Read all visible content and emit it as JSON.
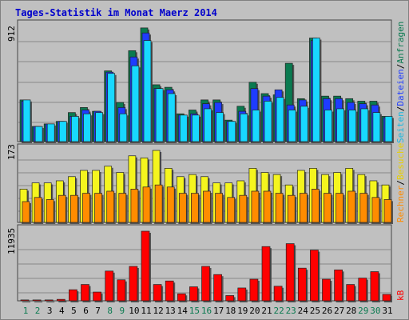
{
  "title": "Tages-Statistik im Monat Maerz 2014",
  "colors": {
    "background": "#c0c0c0",
    "panel": "#c0c0c0",
    "title": "#0000cc",
    "anfragen": "#0a7a50",
    "dateien": "#1e3cff",
    "seiten": "#18d8ff",
    "besuche": "#f5f51e",
    "rechner": "#ff8c00",
    "kb": "#ff0000",
    "weekend_label": "#0a7a50",
    "weekday_label": "#000000"
  },
  "chart_data": [
    {
      "type": "bar",
      "panel": "requests",
      "y_max_label": "912",
      "ylim": [
        0,
        912
      ],
      "categories": [
        "1",
        "2",
        "3",
        "4",
        "5",
        "6",
        "7",
        "8",
        "9",
        "10",
        "11",
        "12",
        "13",
        "14",
        "15",
        "16",
        "17",
        "18",
        "19",
        "20",
        "21",
        "22",
        "23",
        "24",
        "25",
        "26",
        "27",
        "28",
        "29",
        "30",
        "31"
      ],
      "weekend_days": [
        "1",
        "2",
        "8",
        "9",
        "15",
        "16",
        "22",
        "23",
        "29",
        "30"
      ],
      "legend": {
        "anfragen": "Anfragen",
        "dateien": "Dateien",
        "seiten": "Seiten",
        "sep": "/"
      },
      "series": [
        {
          "name": "Anfragen",
          "values": [
            330,
            120,
            140,
            160,
            230,
            270,
            240,
            560,
            310,
            720,
            900,
            450,
            430,
            220,
            250,
            330,
            330,
            170,
            280,
            470,
            380,
            370,
            620,
            340,
            820,
            360,
            360,
            340,
            320,
            320,
            200
          ]
        },
        {
          "name": "Dateien",
          "values": [
            320,
            120,
            140,
            160,
            200,
            250,
            240,
            550,
            270,
            670,
            860,
            420,
            410,
            210,
            220,
            300,
            310,
            160,
            240,
            420,
            360,
            410,
            290,
            330,
            800,
            340,
            340,
            310,
            300,
            290,
            190
          ]
        },
        {
          "name": "Seiten",
          "values": [
            330,
            120,
            140,
            160,
            200,
            220,
            230,
            540,
            220,
            600,
            800,
            420,
            380,
            210,
            210,
            260,
            230,
            160,
            220,
            250,
            320,
            350,
            250,
            280,
            820,
            250,
            260,
            250,
            260,
            230,
            200
          ]
        }
      ]
    },
    {
      "type": "bar",
      "panel": "visits",
      "y_max_label": "173",
      "ylim": [
        0,
        173
      ],
      "categories": [
        "1",
        "2",
        "3",
        "4",
        "5",
        "6",
        "7",
        "8",
        "9",
        "10",
        "11",
        "12",
        "13",
        "14",
        "15",
        "16",
        "17",
        "18",
        "19",
        "20",
        "21",
        "22",
        "23",
        "24",
        "25",
        "26",
        "27",
        "28",
        "29",
        "30",
        "31"
      ],
      "legend": {
        "besuche": "Besuche",
        "rechner": "Rechner",
        "sep": "/"
      },
      "series": [
        {
          "name": "Besuche",
          "values": [
            80,
            95,
            95,
            100,
            110,
            125,
            125,
            135,
            120,
            160,
            155,
            173,
            130,
            110,
            115,
            110,
            95,
            95,
            100,
            130,
            120,
            115,
            90,
            125,
            130,
            115,
            120,
            130,
            115,
            100,
            90
          ]
        },
        {
          "name": "Rechner",
          "values": [
            50,
            60,
            55,
            65,
            65,
            70,
            70,
            75,
            70,
            80,
            85,
            90,
            85,
            70,
            70,
            75,
            70,
            60,
            65,
            75,
            75,
            70,
            65,
            70,
            80,
            70,
            70,
            75,
            70,
            60,
            55
          ]
        }
      ]
    },
    {
      "type": "bar",
      "panel": "traffic",
      "y_max_label": "11935",
      "ylim": [
        0,
        11935
      ],
      "categories": [
        "1",
        "2",
        "3",
        "4",
        "5",
        "6",
        "7",
        "8",
        "9",
        "10",
        "11",
        "12",
        "13",
        "14",
        "15",
        "16",
        "17",
        "18",
        "19",
        "20",
        "21",
        "22",
        "23",
        "24",
        "25",
        "26",
        "27",
        "28",
        "29",
        "30",
        "31"
      ],
      "legend": {
        "kb": "kB"
      },
      "series": [
        {
          "name": "kB",
          "values": [
            150,
            150,
            150,
            250,
            1900,
            2800,
            1500,
            5100,
            3600,
            5900,
            11935,
            2800,
            3400,
            1200,
            2400,
            5900,
            4500,
            900,
            2200,
            3700,
            9300,
            2500,
            9800,
            5600,
            8700,
            3700,
            5300,
            2800,
            3900,
            5000,
            1100
          ]
        }
      ]
    }
  ]
}
